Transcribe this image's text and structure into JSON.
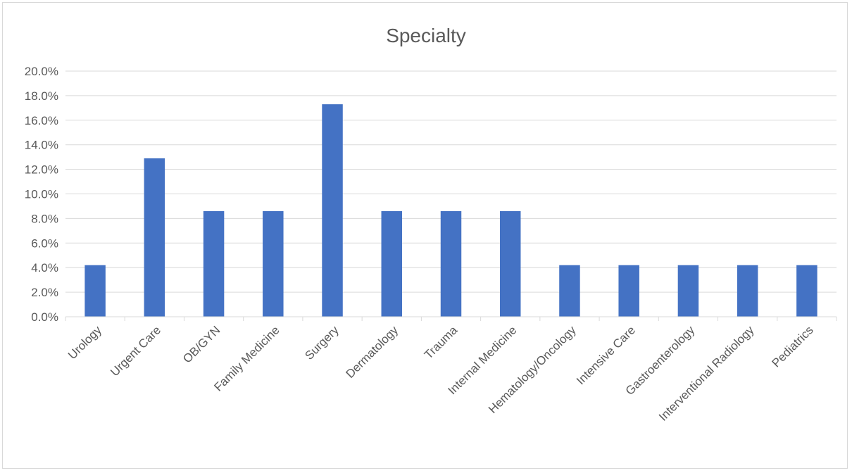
{
  "chart_data": {
    "type": "bar",
    "title": "Specialty",
    "xlabel": "",
    "ylabel": "",
    "categories": [
      "Urology",
      "Urgent Care",
      "OB/GYN",
      "Family Medicine",
      "Surgery",
      "Dermatology",
      "Trauma",
      "Internal Medicine",
      "Hematology/Oncology",
      "Intensive Care",
      "Gastroenterology",
      "Interventional Radiology",
      "Pediatrics"
    ],
    "values": [
      4.2,
      12.9,
      8.6,
      8.6,
      17.3,
      8.6,
      8.6,
      8.6,
      4.2,
      4.2,
      4.2,
      4.2,
      4.2
    ],
    "ylim": [
      0,
      20
    ],
    "yticks": [
      "0.0%",
      "2.0%",
      "4.0%",
      "6.0%",
      "8.0%",
      "10.0%",
      "12.0%",
      "14.0%",
      "16.0%",
      "18.0%",
      "20.0%"
    ],
    "grid": true,
    "legend": "none",
    "bar_color": "#4472c4",
    "grid_color": "#d9d9d9",
    "text_color": "#595959"
  }
}
